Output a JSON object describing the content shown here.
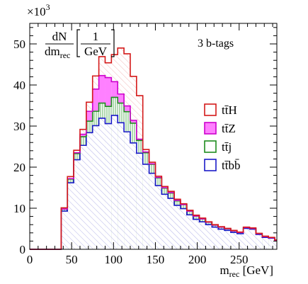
{
  "chart_data": {
    "type": "area",
    "title": "",
    "annotation": "3 b-tags",
    "scale_label": "×10",
    "scale_exponent": "3",
    "ylabel": {
      "numerator": "dN",
      "denominator_main": "dm",
      "denominator_sub": "rec",
      "bracket_top": "1",
      "bracket_bottom": "GeV"
    },
    "xlabel": {
      "main": "m",
      "sub": "rec",
      "unit": "[GeV]"
    },
    "xlim": [
      0,
      295
    ],
    "ylim": [
      0,
      55
    ],
    "xticks": [
      0,
      50,
      100,
      150,
      200,
      250
    ],
    "yticks": [
      0,
      10,
      20,
      30,
      40,
      50
    ],
    "bin_width": 7.5,
    "stacked": true,
    "series": [
      {
        "name": "tt̄bb̄",
        "color": "#1a1ac8",
        "fill": "diagonal-hatch",
        "values": [
          0,
          0,
          0,
          0,
          0,
          9.3,
          16.2,
          21.8,
          25.3,
          28.4,
          30.1,
          31.9,
          30.6,
          32.6,
          30.8,
          28.6,
          25.9,
          23.4,
          20.7,
          18.5,
          15.5,
          13.4,
          12.4,
          10.7,
          9.9,
          8.4,
          7.3,
          6.7,
          6.0,
          5.4,
          4.9,
          4.6,
          4.1,
          3.8,
          5.1,
          4.9,
          3.6,
          2.9,
          2.7,
          2.1
        ]
      },
      {
        "name": "tt̄j",
        "color": "#1e8c1e",
        "fill": "vertical-hatch",
        "values": [
          0,
          0,
          0,
          0,
          0,
          0.5,
          0.9,
          1.5,
          2.1,
          2.8,
          3.5,
          3.7,
          4.2,
          4.4,
          4.8,
          4.9,
          4.8,
          3.1,
          2.8,
          2.2,
          1.9,
          1.5,
          1.3,
          1.1,
          1.0,
          0.9,
          0.8,
          0.7,
          0.6,
          0.5,
          0.5,
          0.4,
          0.4,
          0.3,
          0.2,
          0.2,
          0.2,
          0.2,
          0.1,
          0.1
        ]
      },
      {
        "name": "tt̄Z",
        "color": "#cc00cc",
        "fill": "solid-pink",
        "values": [
          0,
          0,
          0,
          0,
          0,
          0,
          0.1,
          0.2,
          0.6,
          2.4,
          5.4,
          6.7,
          7.0,
          3.8,
          2.2,
          1.4,
          0.7,
          0.3,
          0.2,
          0.1,
          0.1,
          0.1,
          0.1,
          0.1,
          0,
          0,
          0,
          0,
          0,
          0,
          0,
          0,
          0,
          0,
          0,
          0,
          0,
          0,
          0,
          0
        ]
      },
      {
        "name": "tt̄H",
        "color": "#d41a1a",
        "fill": "diagonal-hatch",
        "values": [
          0,
          0,
          0,
          0,
          0,
          0.3,
          0.5,
          0.6,
          1.2,
          2.2,
          3.2,
          4.6,
          3.6,
          6.6,
          11.2,
          12.7,
          10.7,
          10.6,
          0.6,
          0.4,
          0.3,
          0.3,
          0.3,
          0.3,
          0.2,
          0.2,
          0.2,
          0.2,
          0.1,
          0.1,
          0.1,
          0.1,
          0.1,
          0.1,
          0.1,
          0.1,
          0.1,
          0.1,
          0.1,
          0.1
        ]
      }
    ],
    "legend": [
      {
        "label": "tt̄H",
        "color": "#d41a1a",
        "swatch": "#ffffff"
      },
      {
        "label": "tt̄Z",
        "color": "#cc00cc",
        "swatch": "#ff7fff"
      },
      {
        "label": "tt̄j",
        "color": "#1e8c1e",
        "swatch": "#ffffff"
      },
      {
        "label": "tt̄bb̄",
        "color": "#1a1ac8",
        "swatch": "#ffffff"
      }
    ],
    "legend_position": "right"
  }
}
